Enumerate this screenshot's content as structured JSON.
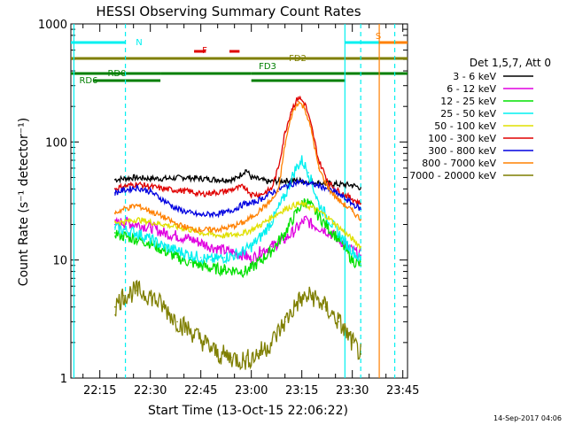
{
  "chart_data": {
    "type": "line",
    "title": "HESSI Observing Summary Count Rates",
    "xlabel": "Start Time (13-Oct-15 22:06:22)",
    "ylabel": "Count Rate (s⁻¹ detector⁻¹)",
    "yscale": "log",
    "ylim": [
      1,
      1000
    ],
    "x_unit": "minutes after 22:00 UT",
    "xlim": [
      6.4,
      106.4
    ],
    "x_ticks": [
      15,
      30,
      45,
      60,
      75,
      90,
      105
    ],
    "x_tick_labels": [
      "22:15",
      "22:30",
      "22:45",
      "23:00",
      "23:15",
      "23:30",
      "23:45"
    ],
    "y_ticks": [
      1,
      10,
      100,
      1000
    ],
    "y_tick_labels": [
      "1",
      "10",
      "100",
      "1000"
    ],
    "legend": {
      "placement": "right",
      "header": "Det 1,5,7, Att 0",
      "entries": [
        {
          "label": "3 - 6 keV",
          "color": "#000000"
        },
        {
          "label": "6 - 12 keV",
          "color": "#e000e0"
        },
        {
          "label": "12 - 25 keV",
          "color": "#00e000"
        },
        {
          "label": "25 - 50 keV",
          "color": "#00f0f0"
        },
        {
          "label": "50 - 100 keV",
          "color": "#e0e000"
        },
        {
          "label": "100 - 300 keV",
          "color": "#e00000"
        },
        {
          "label": "300 - 800 keV",
          "color": "#0000e0"
        },
        {
          "label": "800 - 7000 keV",
          "color": "#ff8000"
        },
        {
          "label": "7000 - 20000 keV",
          "color": "#7f7f00"
        }
      ]
    },
    "series": [
      {
        "name": "3 - 6 keV",
        "color": "#000000",
        "x": [
          19.5,
          25,
          30,
          35,
          40,
          45,
          50,
          55,
          58.5,
          60,
          65,
          70,
          75,
          80,
          85,
          90,
          92.5
        ],
        "y": [
          48,
          50,
          49,
          49,
          50,
          49,
          48,
          48,
          58,
          50,
          46,
          47,
          47,
          45,
          44,
          43,
          41
        ]
      },
      {
        "name": "6 - 12 keV",
        "color": "#e000e0",
        "x": [
          19.5,
          22,
          26,
          30,
          34,
          38,
          42,
          45,
          48,
          52,
          55,
          58,
          60,
          63,
          66,
          70,
          74,
          76,
          78,
          82,
          86,
          90,
          92.5
        ],
        "y": [
          20,
          21,
          20,
          19,
          17,
          16,
          15,
          14,
          13,
          12,
          11.5,
          11,
          10,
          12,
          13,
          15,
          19,
          22,
          20,
          18,
          15,
          12,
          11
        ]
      },
      {
        "name": "12 - 25 keV",
        "color": "#00e000",
        "x": [
          19.5,
          22,
          26,
          30,
          34,
          38,
          42,
          45,
          48,
          52,
          55,
          58,
          60,
          63,
          66,
          70,
          74,
          76,
          78,
          82,
          86,
          90,
          92.5
        ],
        "y": [
          17,
          16,
          15,
          14,
          12,
          10.5,
          9.5,
          9,
          8.5,
          8.3,
          8.2,
          8,
          8.5,
          10,
          12,
          17,
          27,
          32,
          28,
          20,
          15,
          10,
          9
        ]
      },
      {
        "name": "25 - 50 keV",
        "color": "#00f0f0",
        "x": [
          19.5,
          22,
          26,
          30,
          34,
          38,
          42,
          45,
          48,
          52,
          55,
          58,
          60,
          63,
          66,
          70,
          73,
          75,
          77,
          80,
          84,
          88,
          92.5
        ],
        "y": [
          19,
          18,
          17,
          15,
          13,
          12,
          11,
          10.5,
          10,
          10.5,
          11,
          12,
          13,
          16,
          21,
          35,
          58,
          70,
          55,
          30,
          20,
          14,
          10
        ]
      },
      {
        "name": "50 - 100 keV",
        "color": "#e0e000",
        "x": [
          19.5,
          22,
          26,
          30,
          34,
          38,
          42,
          45,
          48,
          52,
          55,
          58,
          60,
          63,
          66,
          70,
          74,
          78,
          82,
          86,
          90,
          92.5
        ],
        "y": [
          21,
          21,
          22,
          21,
          20,
          19,
          18,
          17,
          16.5,
          16,
          16.5,
          17,
          18,
          20,
          23,
          27,
          30,
          28,
          24,
          19,
          15,
          13
        ]
      },
      {
        "name": "100 - 300 keV",
        "color": "#e00000",
        "x": [
          19.5,
          22,
          26,
          30,
          34,
          38,
          42,
          45,
          48,
          52,
          55,
          58,
          60,
          63,
          66,
          68,
          70,
          72,
          74,
          76,
          78,
          80,
          83,
          86,
          90,
          92.5
        ],
        "y": [
          40,
          42,
          44,
          42,
          40,
          39,
          38,
          36,
          37,
          38,
          40,
          42,
          36,
          36,
          40,
          60,
          120,
          190,
          240,
          210,
          130,
          70,
          45,
          38,
          33,
          30
        ]
      },
      {
        "name": "300 - 800 keV",
        "color": "#0000e0",
        "x": [
          19.5,
          22,
          26,
          30,
          34,
          38,
          42,
          45,
          48,
          52,
          55,
          58,
          60,
          63,
          66,
          70,
          74,
          78,
          82,
          86,
          90,
          92.5
        ],
        "y": [
          37,
          39,
          41,
          38,
          32,
          27,
          25,
          24,
          24.5,
          25,
          27,
          30,
          30,
          33,
          37,
          42,
          46,
          44,
          41,
          36,
          30,
          27
        ]
      },
      {
        "name": "800 - 7000 keV",
        "color": "#ff8000",
        "x": [
          19.5,
          22,
          26,
          30,
          34,
          38,
          42,
          45,
          48,
          52,
          55,
          58,
          60,
          63,
          66,
          68,
          70,
          72,
          74,
          76,
          78,
          80,
          83,
          86,
          90,
          92.5
        ],
        "y": [
          25,
          27,
          29,
          26,
          23,
          20,
          18.5,
          18,
          18,
          18.5,
          19.5,
          21,
          23,
          27,
          32,
          38,
          95,
          170,
          220,
          190,
          120,
          60,
          40,
          32,
          26,
          22
        ]
      },
      {
        "name": "7000 - 20000 keV",
        "color": "#7f7f00",
        "x": [
          19.5,
          22,
          26,
          30,
          34,
          38,
          42,
          46,
          50,
          54,
          58,
          62,
          66,
          70,
          74,
          78,
          82,
          86,
          90,
          92.5
        ],
        "y": [
          4,
          5,
          5.5,
          5,
          4,
          3,
          2.5,
          2,
          1.6,
          1.5,
          1.4,
          1.6,
          2,
          3,
          4.5,
          5,
          4,
          3,
          2,
          1.6
        ]
      }
    ],
    "reference_lines": [
      {
        "x": 7.3,
        "color": "#00f0f0",
        "style": "solid"
      },
      {
        "x": 22.6,
        "color": "#00f0f0",
        "style": "dashed"
      },
      {
        "x": 87.8,
        "color": "#00f0f0",
        "style": "solid"
      },
      {
        "x": 92.5,
        "color": "#00f0f0",
        "style": "dashed"
      },
      {
        "x": 98.0,
        "color": "#ff8000",
        "style": "solid"
      },
      {
        "x": 102.6,
        "color": "#00f0f0",
        "style": "dashed"
      }
    ],
    "flag_bars": [
      {
        "label": "N",
        "color": "#00f0f0",
        "level": "top",
        "segments": [
          [
            6.4,
            22.6
          ],
          [
            87.8,
            102.6
          ]
        ]
      },
      {
        "label": "S",
        "color": "#ff8000",
        "level": "top",
        "segments": [
          [
            98.0,
            106.4
          ]
        ]
      },
      {
        "label": "F",
        "color": "#e00000",
        "level": "upper",
        "segments": [
          [
            43,
            46.5
          ],
          [
            53.5,
            56.5
          ]
        ]
      },
      {
        "label": "FD2",
        "color": "#7f7f00",
        "level": "middle",
        "segments": [
          [
            6.4,
            106.4
          ]
        ]
      },
      {
        "label": "RD0",
        "color": "#007f00",
        "level": "low",
        "segments": [
          [
            6.4,
            33
          ],
          [
            60,
            88
          ]
        ]
      },
      {
        "label": "FD3",
        "color": "#007f00",
        "level": "low",
        "segments": [
          [
            33,
            60
          ],
          [
            88,
            106.4
          ]
        ]
      },
      {
        "label": "RD6",
        "color": "#007f00",
        "level": "lower",
        "segments": [
          [
            13,
            33
          ],
          [
            60,
            88
          ]
        ]
      }
    ]
  },
  "footer": "14-Sep-2017 04:06"
}
